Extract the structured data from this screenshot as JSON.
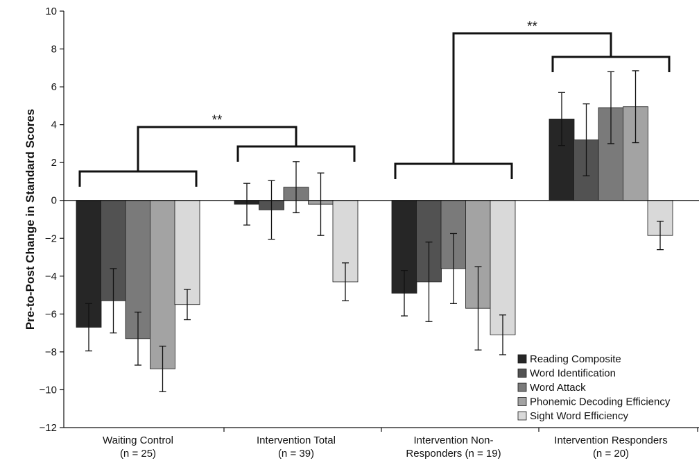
{
  "chart_data": {
    "type": "bar",
    "title": "",
    "xlabel": "",
    "ylabel": "Pre-to-Post Change in Standard Scores",
    "ylim": [
      -12,
      10
    ],
    "yticks": [
      10,
      8,
      6,
      4,
      2,
      0,
      -2,
      -4,
      -6,
      -8,
      -10,
      -12
    ],
    "grid": false,
    "legend_position": "bottom-right",
    "categories": [
      {
        "line1": "Waiting Control",
        "line2": "(n = 25)"
      },
      {
        "line1": "Intervention Total",
        "line2": "(n = 39)"
      },
      {
        "line1": "Intervention Non-",
        "line2": "Responders (n = 19)"
      },
      {
        "line1": "Intervention Responders",
        "line2": "(n = 20)"
      }
    ],
    "series": [
      {
        "name": "Reading Composite",
        "color": "#262626",
        "values": [
          -6.7,
          -0.2,
          -4.9,
          4.3
        ],
        "errors": [
          1.25,
          1.1,
          1.2,
          1.4
        ]
      },
      {
        "name": "Word Identification",
        "color": "#525252",
        "values": [
          -5.3,
          -0.5,
          -4.3,
          3.2
        ],
        "errors": [
          1.7,
          1.55,
          2.1,
          1.9
        ]
      },
      {
        "name": "Word Attack",
        "color": "#7a7a7a",
        "values": [
          -7.3,
          0.7,
          -3.6,
          4.9
        ],
        "errors": [
          1.4,
          1.35,
          1.85,
          1.9
        ]
      },
      {
        "name": "Phonemic Decoding Efficiency",
        "color": "#a3a3a3",
        "values": [
          -8.9,
          -0.2,
          -5.7,
          4.95
        ],
        "errors": [
          1.2,
          1.65,
          2.2,
          1.9
        ]
      },
      {
        "name": "Sight Word Efficiency",
        "color": "#d9d9d9",
        "values": [
          -5.5,
          -4.3,
          -7.1,
          -1.85
        ],
        "errors": [
          0.8,
          1.0,
          1.05,
          0.75
        ]
      }
    ],
    "annotations": [
      {
        "text": "**",
        "between": [
          0,
          1
        ]
      },
      {
        "text": "**",
        "between": [
          2,
          3
        ]
      }
    ]
  }
}
